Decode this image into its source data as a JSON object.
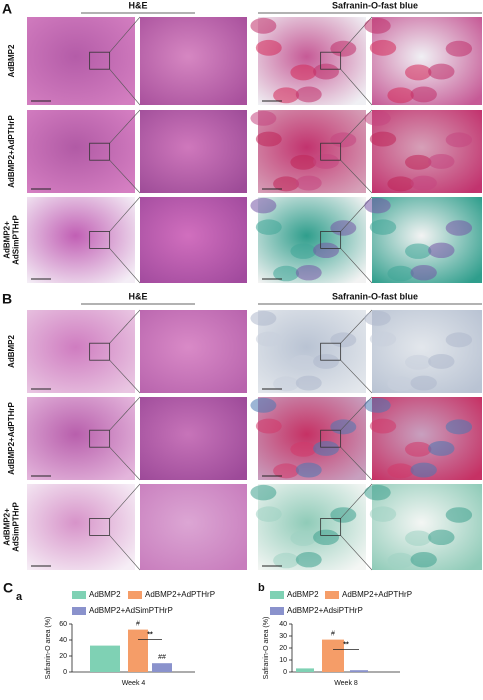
{
  "panels": [
    {
      "label": "A",
      "headers": [
        "H&E",
        "Safranin-O-fast blue"
      ],
      "rows": [
        [
          "AdBMP2"
        ],
        [
          "AdBMP2+AdPTHrP"
        ],
        [
          "AdBMP2+",
          "AdSimPTHrP"
        ]
      ]
    },
    {
      "label": "B",
      "headers": [
        "H&E",
        "Safranin-O-fast blue"
      ],
      "rows": [
        [
          "AdBMP2"
        ],
        [
          "AdBMP2+AdPTHrP"
        ],
        [
          "AdBMP2+",
          "AdSimPTHrP"
        ]
      ]
    }
  ],
  "panel_c_label": "C",
  "chart_data": [
    {
      "type": "bar",
      "label": "a",
      "ylabel": "Safranin-O area (%)",
      "categories": [
        "Week 4"
      ],
      "series": [
        {
          "name": "AdBMP2",
          "color": "#7fd1b4",
          "values": [
            33
          ]
        },
        {
          "name": "AdBMP2+AdPTHrP",
          "color": "#f59d68",
          "values": [
            53
          ]
        },
        {
          "name": "AdBMP2+AdSimPTHrP",
          "color": "#8a92cc",
          "values": [
            11
          ]
        }
      ],
      "ylim": [
        0,
        60
      ],
      "yticks": [
        0,
        20,
        40,
        60
      ],
      "annotations": [
        "#",
        "##",
        "**"
      ]
    },
    {
      "type": "bar",
      "label": "b",
      "ylabel": "Safranin-O area (%)",
      "categories": [
        "Week 8"
      ],
      "series": [
        {
          "name": "AdBMP2",
          "color": "#7fd1b4",
          "values": [
            3
          ]
        },
        {
          "name": "AdBMP2+AdPTHrP",
          "color": "#f59d68",
          "values": [
            27
          ]
        },
        {
          "name": "AdBMP2+AdsiPTHrP",
          "color": "#8a92cc",
          "values": [
            1.5
          ]
        }
      ],
      "ylim": [
        0,
        40
      ],
      "yticks": [
        0,
        10,
        20,
        30,
        40
      ],
      "annotations": [
        "#",
        "**"
      ]
    }
  ]
}
